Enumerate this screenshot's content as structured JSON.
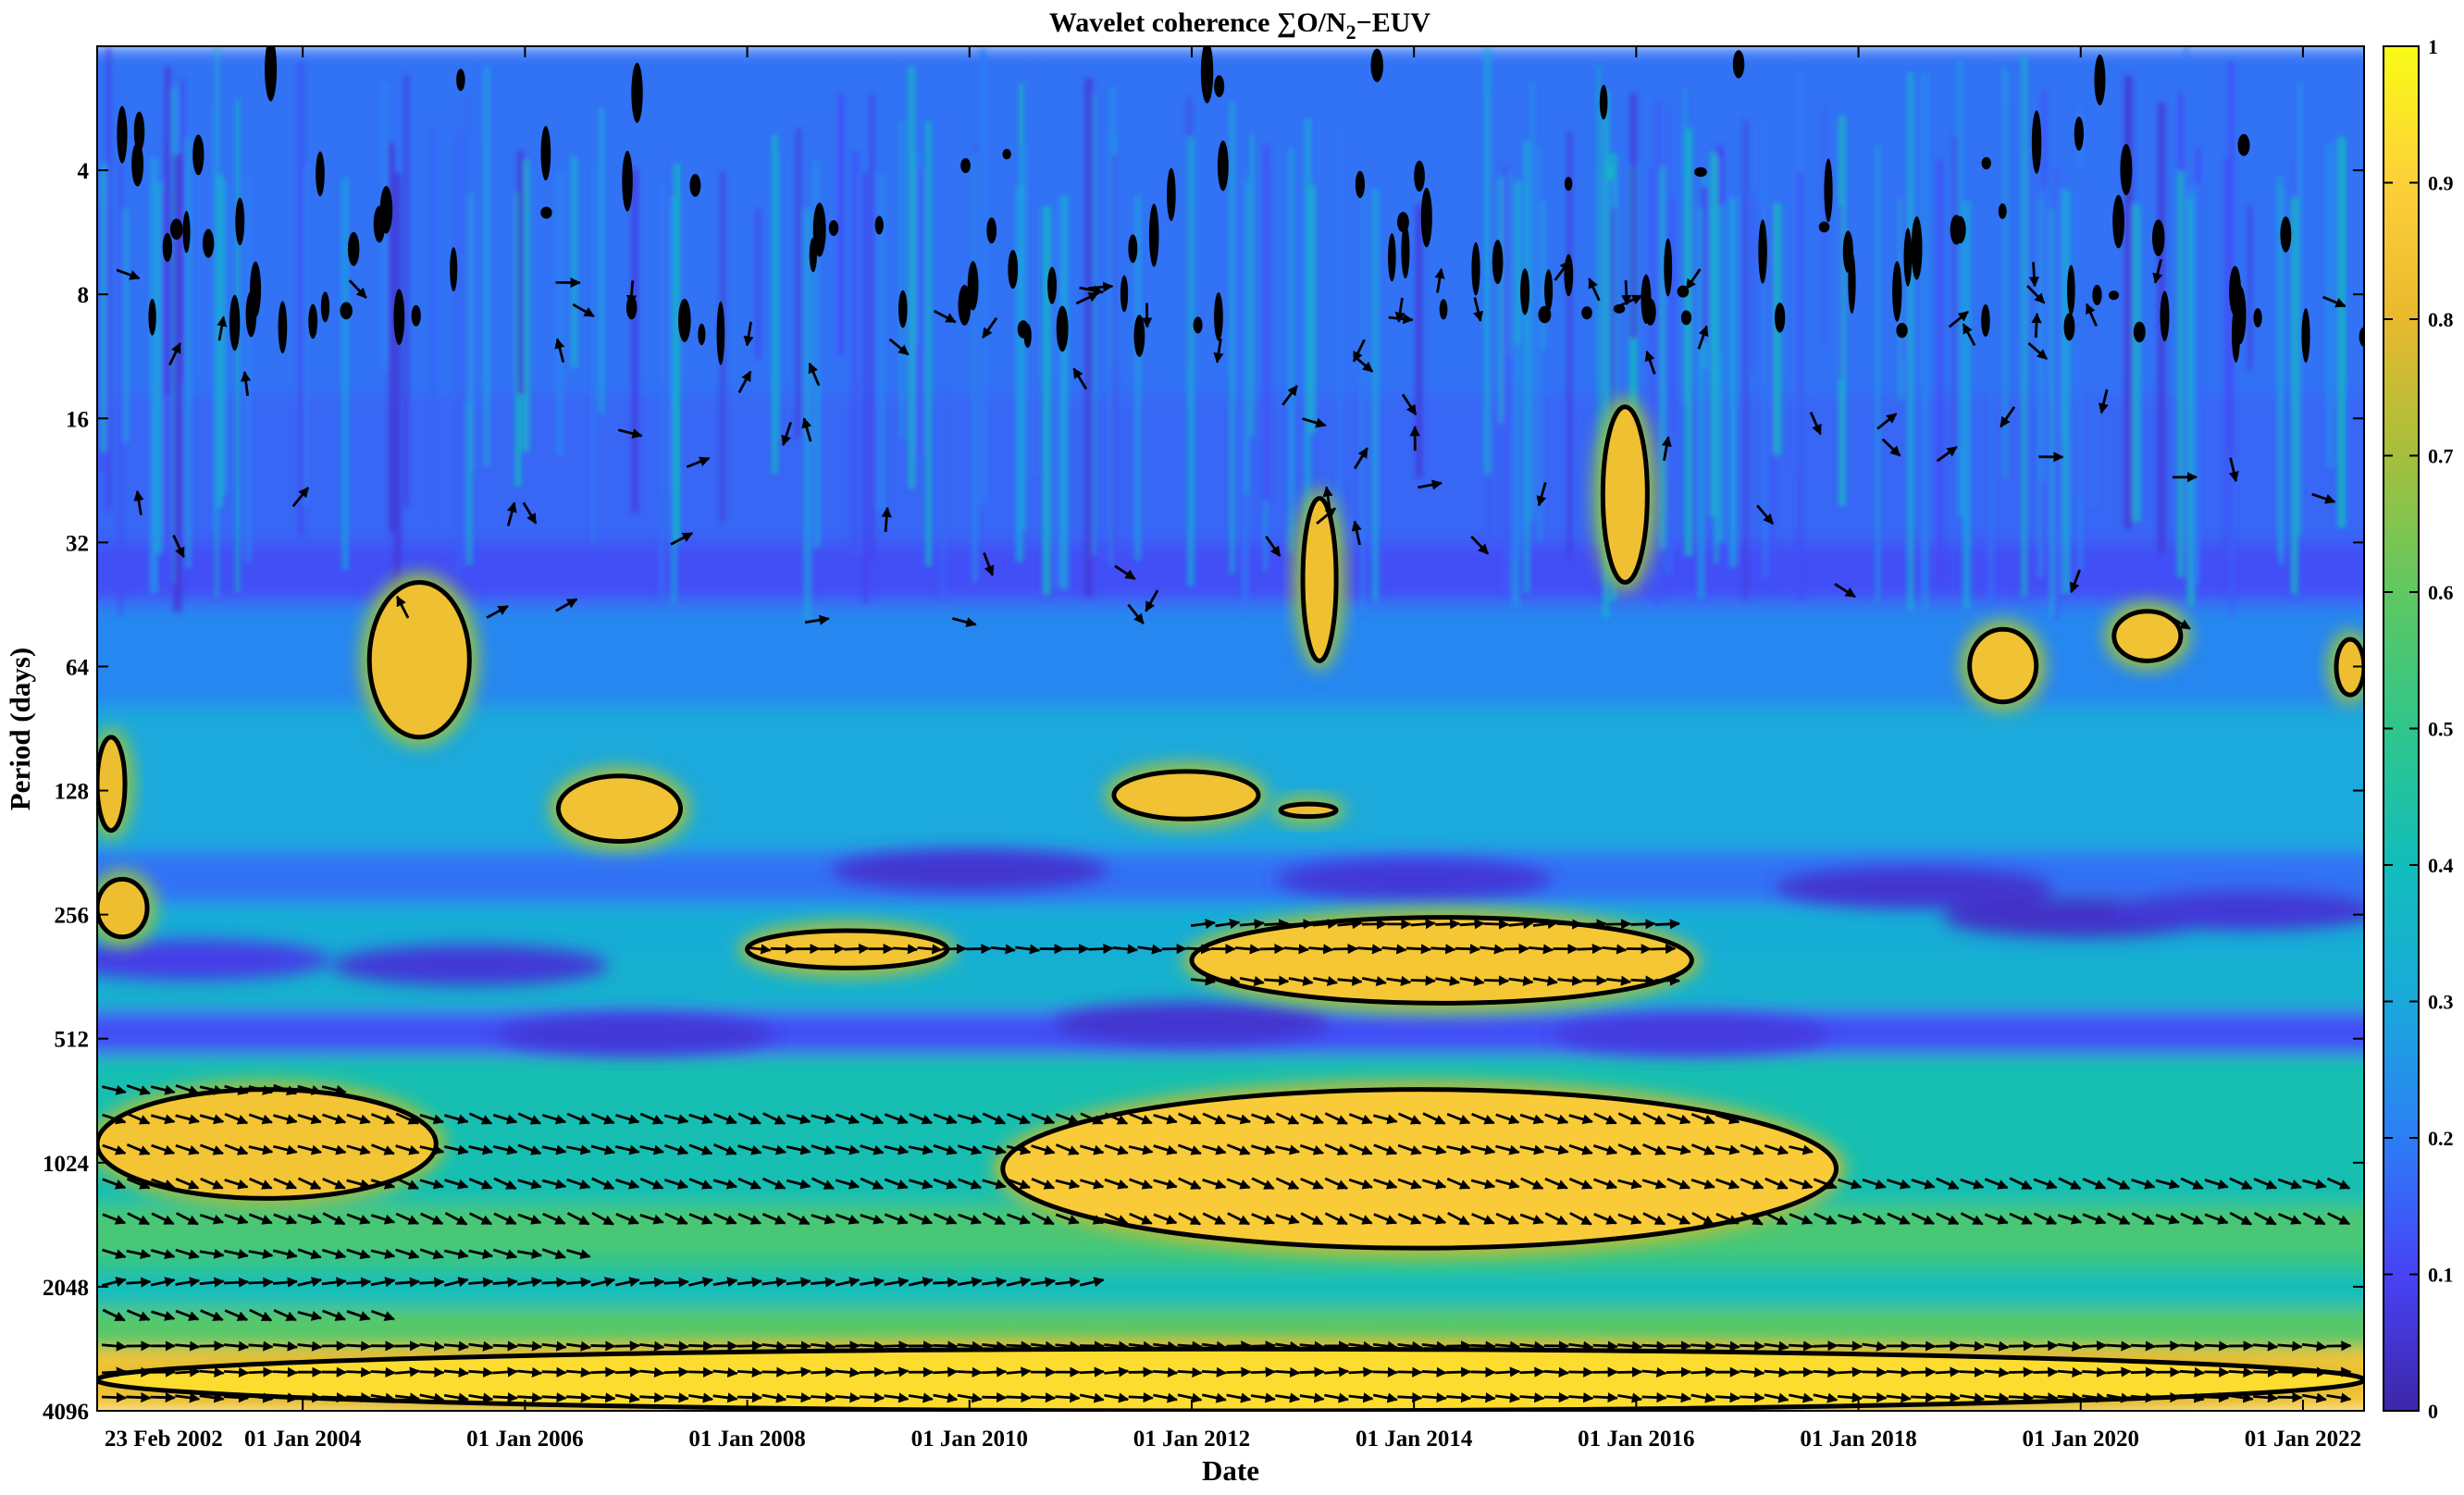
{
  "chart_data": {
    "type": "heatmap",
    "title": "Wavelet coherence ∑O/N₂−EUV",
    "title_parts": {
      "prefix": "Wavelet coherence ∑O/N",
      "subscript": "2",
      "suffix": "−EUV"
    },
    "xlabel": "Date",
    "ylabel": "Period (days)",
    "x_tick_labels": [
      "23 Feb 2002",
      "01 Jan 2004",
      "01 Jan 2006",
      "01 Jan 2008",
      "01 Jan 2010",
      "01 Jan 2012",
      "01 Jan 2014",
      "01 Jan 2016",
      "01 Jan 2018",
      "01 Jan 2020",
      "01 Jan 2022"
    ],
    "x_tick_years": [
      2002.15,
      2004.0,
      2006.0,
      2008.0,
      2010.0,
      2012.0,
      2014.0,
      2016.0,
      2018.0,
      2020.0,
      2022.0
    ],
    "xlim": [
      2002.15,
      2022.55
    ],
    "y_ticks": [
      4,
      8,
      16,
      32,
      64,
      128,
      256,
      512,
      1024,
      2048,
      4096
    ],
    "ylim": [
      2,
      4096
    ],
    "y_scale": "log2",
    "y_reversed": true,
    "colorbar": {
      "ticks": [
        "0",
        "0.1",
        "0.2",
        "0.3",
        "0.4",
        "0.5",
        "0.6",
        "0.7",
        "0.8",
        "0.9",
        "1"
      ],
      "range": [
        0,
        1
      ],
      "colormap": [
        "#3e26a8",
        "#4743f6",
        "#2c7ef5",
        "#1aa9db",
        "#12bebb",
        "#30c58a",
        "#5fc861",
        "#a5bf3c",
        "#e9b92e",
        "#fdd03a",
        "#f9fb15"
      ]
    },
    "significant_regions": [
      {
        "t0": 2002.15,
        "t1": 2005.2,
        "p0": 680,
        "p1": 1250,
        "coherence": 0.85
      },
      {
        "t0": 2010.3,
        "t1": 2017.8,
        "p0": 680,
        "p1": 1650,
        "coherence": 0.88
      },
      {
        "t0": 2002.15,
        "t1": 2022.55,
        "p0": 2900,
        "p1": 4096,
        "coherence": 0.93
      },
      {
        "t0": 2008.0,
        "t1": 2009.8,
        "p0": 280,
        "p1": 345,
        "coherence": 0.85
      },
      {
        "t0": 2012.0,
        "t1": 2016.5,
        "p0": 260,
        "p1": 420,
        "coherence": 0.86
      },
      {
        "t0": 2006.3,
        "t1": 2007.4,
        "p0": 118,
        "p1": 170,
        "coherence": 0.84
      },
      {
        "t0": 2011.3,
        "t1": 2012.6,
        "p0": 115,
        "p1": 150,
        "coherence": 0.84
      },
      {
        "t0": 2012.8,
        "t1": 2013.3,
        "p0": 138,
        "p1": 148,
        "coherence": 0.82
      },
      {
        "t0": 2002.15,
        "t1": 2002.4,
        "p0": 95,
        "p1": 160,
        "coherence": 0.82
      },
      {
        "t0": 2002.15,
        "t1": 2002.6,
        "p0": 210,
        "p1": 290,
        "coherence": 0.82
      },
      {
        "t0": 2004.6,
        "t1": 2005.5,
        "p0": 40,
        "p1": 95,
        "coherence": 0.83
      },
      {
        "t0": 2019.0,
        "t1": 2019.6,
        "p0": 52,
        "p1": 78,
        "coherence": 0.84
      },
      {
        "t0": 2020.3,
        "t1": 2020.9,
        "p0": 47,
        "p1": 62,
        "coherence": 0.84
      },
      {
        "t0": 2022.3,
        "t1": 2022.55,
        "p0": 55,
        "p1": 75,
        "coherence": 0.82
      },
      {
        "t0": 2013.0,
        "t1": 2013.3,
        "p0": 25,
        "p1": 62,
        "coherence": 0.83
      },
      {
        "t0": 2015.7,
        "t1": 2016.1,
        "p0": 15,
        "p1": 40,
        "coherence": 0.83
      }
    ],
    "grid": false,
    "legend": "colorbar-right",
    "overlays": [
      "significance contours (black)",
      "phase arrows"
    ]
  }
}
